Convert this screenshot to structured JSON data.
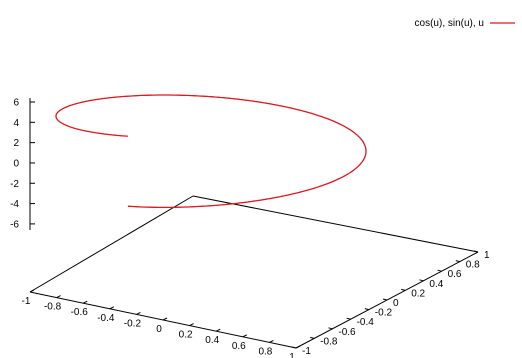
{
  "chart_data": {
    "type": "line",
    "title": "",
    "legend": {
      "label": "cos(u), sin(u), u",
      "placement": "top-right"
    },
    "series": [
      {
        "name": "cos(u), sin(u), u",
        "color": "#dd181f",
        "parametric": {
          "x": "cos(u)",
          "y": "sin(u)",
          "z": "u",
          "u_range": [
            0,
            6.283
          ]
        }
      }
    ],
    "x_axis": {
      "range": [
        -1,
        1
      ],
      "tick_labels": [
        "-1",
        "-0.8",
        "-0.6",
        "-0.4",
        "-0.2",
        "0",
        "0.2",
        "0.4",
        "0.6",
        "0.8",
        "1"
      ]
    },
    "y_axis": {
      "range": [
        -1,
        1
      ],
      "tick_labels": [
        "-1",
        "-0.8",
        "-0.6",
        "-0.4",
        "-0.2",
        "0",
        "0.2",
        "0.4",
        "0.6",
        "0.8",
        "1"
      ]
    },
    "z_axis": {
      "range": [
        -6,
        6
      ],
      "tick_labels": [
        "6",
        "4",
        "2",
        "0",
        "-2",
        "-4",
        "-6"
      ]
    },
    "grid": false
  }
}
